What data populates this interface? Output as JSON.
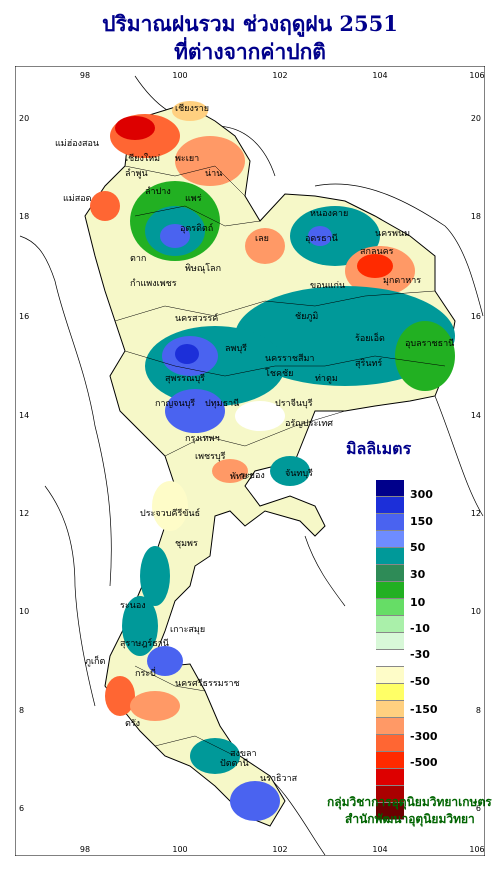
{
  "title_line1": "ปริมาณฝนรวม ช่วงฤดูฝน 2551",
  "title_line2": "ที่ต่างจากค่าปกติ",
  "axes": {
    "x_ticks": [
      "98",
      "100",
      "102",
      "104",
      "106"
    ],
    "y_ticks": [
      "20",
      "18",
      "16",
      "14",
      "12",
      "10",
      "8",
      "6"
    ]
  },
  "legend": {
    "title": "มิลลิเมตร",
    "colors": [
      "#00008b",
      "#1c2fd9",
      "#4a63f0",
      "#6e8cff",
      "#009999",
      "#2e8b57",
      "#22b022",
      "#66dd66",
      "#aaf0aa",
      "#d8f8d8",
      "#ffffff",
      "#fefcc8",
      "#ffff66",
      "#ffd080",
      "#ff9966",
      "#ff6633",
      "#ff2a00",
      "#dd0000",
      "#aa0000",
      "#6b0000"
    ],
    "labels": [
      "300",
      "150",
      "50",
      "30",
      "10",
      "-10",
      "-30",
      "-50",
      "-150",
      "-300",
      "-500"
    ]
  },
  "places": [
    "เชียงราย",
    "แม่ฮ่องสอน",
    "เชียงใหม่",
    "ลำพูน",
    "พะเยา",
    "น่าน",
    "ลำปาง",
    "แพร่",
    "แม่สอด",
    "อุตรดิตถ์",
    "ตาก",
    "พิษณุโลก",
    "กำแพงเพชร",
    "หนองคาย",
    "อุดรธานี",
    "นครพนม",
    "สกลนคร",
    "มุกดาหาร",
    "เลย",
    "ขอนแก่น",
    "นครสวรรค์",
    "ชัยภูมิ",
    "อุบลราชธานี",
    "ร้อยเอ็ด",
    "สุรินทร์",
    "ลพบุรี",
    "สุพรรณบุรี",
    "นครราชสีมา",
    "โชคชัย",
    "ท่าตูม",
    "กาญจนบุรี",
    "ปทุมธานี",
    "ปราจีนบุรี",
    "อรัญประเทศ",
    "กรุงเทพฯ",
    "เพชรบุรี",
    "พัทยา",
    "ระยอง",
    "จันทบุรี",
    "ประจวบคีรีขันธ์",
    "ชุมพร",
    "ระนอง",
    "เกาะสมุย",
    "สุราษฎร์ธานี",
    "นครศรีธรรมราช",
    "ภูเก็ต",
    "กระบี่",
    "ตรัง",
    "สงขลา",
    "ปัตตานี",
    "นราธิวาส"
  ],
  "credits": {
    "line1": "กลุ่มวิชาการอุตุนิยมวิทยาเกษตร",
    "line2": "สำนักพัฒนาอุตุนิยมวิทยา"
  }
}
